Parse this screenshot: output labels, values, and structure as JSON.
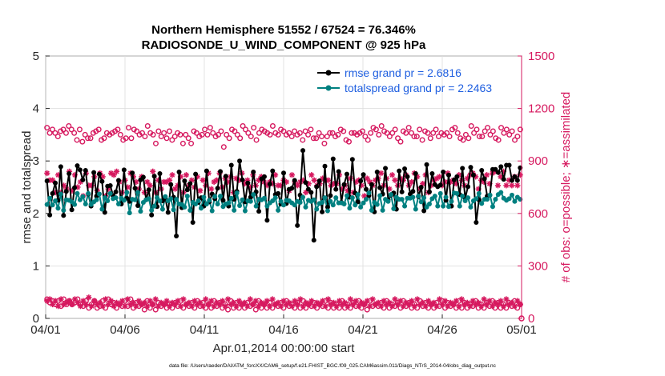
{
  "chart_data": {
    "type": "line",
    "title": [
      "Northern Hemisphere 51552 / 67524 = 76.346%",
      "RADIOSONDE_U_WIND_COMPONENT @ 925 hPa"
    ],
    "xlabel": "Apr.01,2014 00:00:00 start",
    "ylabel": "rmse and totalspread",
    "y2label": "# of obs: o=possible; ∗=assimilated",
    "footnote": "data file: /Users/raeder/DAI/ATM_forcXX/CAM6_setup/f.e21.FHIST_BGC.f09_025.CAM6assim.011/Diags_NTrS_2014-04/obs_diag_output.nc",
    "xlim": [
      0,
      30
    ],
    "ylim": [
      0,
      5
    ],
    "y2lim": [
      0,
      1500
    ],
    "xticks": [
      0,
      5,
      10,
      15,
      20,
      25,
      30
    ],
    "xticklabels": [
      "04/01",
      "04/06",
      "04/11",
      "04/16",
      "04/21",
      "04/26",
      "05/01"
    ],
    "yticks": [
      0,
      1,
      2,
      3,
      4,
      5
    ],
    "yticklabels": [
      "0",
      "1",
      "2",
      "3",
      "4",
      "5"
    ],
    "y2ticks": [
      0,
      300,
      600,
      900,
      1200,
      1500
    ],
    "y2ticklabels": [
      "0",
      "300",
      "600",
      "900",
      "1200",
      "1500"
    ],
    "legend_position": "top-right",
    "colors": {
      "rmse": "#000000",
      "spread": "#008080",
      "obs": "#d6195f"
    },
    "series": [
      {
        "name": "rmse",
        "legend": "rmse grand pr = 2.6816",
        "values": [
          2.62,
          1.97,
          2.38,
          2.58,
          2.25,
          2.89,
          1.96,
          2.42,
          2.76,
          2.07,
          2.49,
          2.91,
          2.83,
          2.64,
          2.82,
          2.37,
          2.14,
          2.78,
          2.33,
          2.75,
          2.61,
          2.02,
          2.52,
          2.53,
          2.34,
          2.41,
          2.63,
          2.18,
          2.83,
          2.29,
          2.23,
          2.77,
          2.48,
          2.15,
          2.64,
          2.69,
          2.26,
          2.45,
          1.97,
          2.71,
          2.13,
          2.76,
          2.24,
          2.29,
          2.02,
          2.55,
          2.31,
          1.57,
          2.79,
          2.11,
          2.62,
          2.45,
          2.57,
          1.83,
          2.75,
          2.21,
          2.3,
          2.14,
          2.81,
          2.22,
          2.37,
          2.28,
          2.48,
          2.8,
          2.25,
          2.71,
          2.14,
          2.92,
          2.27,
          2.42,
          3.0,
          2.64,
          2.22,
          2.58,
          2.31,
          2.79,
          2.41,
          2.04,
          2.66,
          2.7,
          1.87,
          2.56,
          2.81,
          2.36,
          2.38,
          2.18,
          2.77,
          2.19,
          2.46,
          2.48,
          2.63,
          1.77,
          2.35,
          3.2,
          2.59,
          2.46,
          2.4,
          1.49,
          2.51,
          2.62,
          2.03,
          2.9,
          2.12,
          2.34,
          3.04,
          2.46,
          2.8,
          2.21,
          2.55,
          2.75,
          2.31,
          3.03,
          2.39,
          2.22,
          2.62,
          2.74,
          2.46,
          2.34,
          2.55,
          2.03,
          2.79,
          2.49,
          2.37,
          2.86,
          2.26,
          2.35,
          2.39,
          2.08,
          2.81,
          2.41,
          2.85,
          2.7,
          2.37,
          2.42,
          2.76,
          2.32,
          2.5,
          2.05,
          2.93,
          2.41,
          2.76,
          2.55,
          2.51,
          2.54,
          2.79,
          2.25,
          2.73,
          2.14,
          2.64,
          2.7,
          2.36,
          2.86,
          2.29,
          2.51,
          2.88,
          2.73,
          1.83,
          2.26,
          2.82,
          2.66,
          2.33,
          2.35,
          2.84,
          2.84,
          2.78,
          2.89,
          2.65,
          2.92,
          2.92,
          2.63,
          2.7,
          2.63,
          2.87
        ]
      },
      {
        "name": "totalspread",
        "legend": "totalspread grand pr = 2.2463",
        "values": [
          2.17,
          2.29,
          2.16,
          2.24,
          2.1,
          2.37,
          2.06,
          2.26,
          2.25,
          2.22,
          2.17,
          2.38,
          2.26,
          2.32,
          2.18,
          2.38,
          2.17,
          2.22,
          2.26,
          2.37,
          2.08,
          2.3,
          2.24,
          2.38,
          2.28,
          2.3,
          2.18,
          2.29,
          2.25,
          2.4,
          2.01,
          2.27,
          2.26,
          2.4,
          2.04,
          2.21,
          2.26,
          2.28,
          2.06,
          2.14,
          2.3,
          2.24,
          2.08,
          2.32,
          2.24,
          2.28,
          2.07,
          2.27,
          2.18,
          2.17,
          2.12,
          2.33,
          2.06,
          2.21,
          2.18,
          2.24,
          2.1,
          2.31,
          2.18,
          2.25,
          2.05,
          2.32,
          2.18,
          2.33,
          2.13,
          2.18,
          2.2,
          2.29,
          2.06,
          2.39,
          2.15,
          2.26,
          2.05,
          2.24,
          2.23,
          2.36,
          2.14,
          2.27,
          2.26,
          2.29,
          2.14,
          2.2,
          2.24,
          2.3,
          2.06,
          2.23,
          2.16,
          2.25,
          2.24,
          2.2,
          2.16,
          2.23,
          2.21,
          2.31,
          2.12,
          2.25,
          2.23,
          2.26,
          2.08,
          2.19,
          2.21,
          2.3,
          2.05,
          2.23,
          2.16,
          2.3,
          2.2,
          2.2,
          2.18,
          2.34,
          2.1,
          2.3,
          2.16,
          2.36,
          2.12,
          2.2,
          2.27,
          2.39,
          2.06,
          2.21,
          2.17,
          2.34,
          2.06,
          2.27,
          2.23,
          2.36,
          2.09,
          2.31,
          2.27,
          2.27,
          2.14,
          2.29,
          2.29,
          2.31,
          2.08,
          2.33,
          2.22,
          2.3,
          2.12,
          2.18,
          2.28,
          2.33,
          2.14,
          2.38,
          2.14,
          2.31,
          2.13,
          2.23,
          2.39,
          2.38,
          2.14,
          2.33,
          2.24,
          2.3,
          2.12,
          2.24,
          2.28,
          2.38,
          2.19,
          2.27,
          2.27,
          2.35,
          2.13,
          2.27,
          2.36,
          2.4,
          2.29,
          2.25,
          2.28,
          2.35,
          2.23,
          2.31,
          2.27
        ]
      },
      {
        "name": "obs_possible",
        "axis": "right",
        "marker": "o",
        "values": [
          1090,
          1060,
          1080,
          1060,
          1040,
          1070,
          1080,
          1060,
          1100,
          1080,
          1060,
          1020,
          1080,
          1010,
          1050,
          1030,
          1030,
          1060,
          1070,
          1080,
          1020,
          1030,
          1060,
          1050,
          1060,
          1070,
          1080,
          1050,
          1020,
          1030,
          1090,
          1030,
          1080,
          1070,
          1050,
          1060,
          1040,
          1100,
          1060,
          1050,
          1000,
          1070,
          1040,
          1060,
          1030,
          1070,
          1020,
          1040,
          1060,
          1050,
          1000,
          1050,
          1030,
          1000,
          1070,
          1060,
          1040,
          1050,
          1080,
          1050,
          1090,
          1060,
          1040,
          1050,
          1070,
          980,
          1050,
          1030,
          1080,
          1070,
          1050,
          1030,
          1100,
          1080,
          1060,
          1040,
          1090,
          1020,
          1060,
          1080,
          1070,
          1060,
          1050,
          1100,
          1060,
          1050,
          1080,
          1070,
          1050,
          1060,
          1040,
          1070,
          1050,
          1060,
          1020,
          1070,
          1050,
          1080,
          1030,
          1030,
          1060,
          1040,
          1000,
          1040,
          1060,
          1060,
          1040,
          1050,
          1080,
          1070,
          1020,
          1010,
          1060,
          1060,
          1050,
          1060,
          1070,
          1040,
          1020,
          1060,
          1090,
          1080,
          1050,
          1100,
          1070,
          1060,
          1040,
          1060,
          1080,
          1030,
          1010,
          1070,
          1060,
          1090,
          1060,
          1040,
          1040,
          1080,
          1020,
          1070,
          1060,
          1030,
          1060,
          1080,
          1040,
          1060,
          1050,
          1060,
          1040,
          1080,
          1090,
          1060,
          1030,
          1020,
          1050,
          1030,
          1100,
          1060,
          1080,
          1040,
          1040,
          1070,
          1090,
          1050,
          1070,
          1030,
          1020,
          1090,
          1060,
          1080,
          1050,
          1070,
          1020,
          1040,
          1080
        ]
      },
      {
        "name": "obs_assimilated",
        "axis": "right",
        "marker": "*",
        "values": [
          830,
          790,
          790,
          720,
          820,
          720,
          760,
          740,
          840,
          730,
          820,
          750,
          780,
          700,
          830,
          760,
          760,
          810,
          730,
          830,
          810,
          700,
          740,
          830,
          820,
          840,
          780,
          720,
          790,
          750,
          830,
          810,
          780,
          740,
          810,
          720,
          780,
          760,
          840,
          720,
          790,
          740,
          780,
          780,
          790,
          820,
          740,
          760,
          810,
          720,
          820,
          760,
          790,
          750,
          810,
          730,
          790,
          760,
          830,
          740,
          780,
          790,
          830,
          750,
          800,
          780,
          810,
          720,
          800,
          790,
          830,
          770,
          790,
          750,
          820,
          760,
          790,
          810,
          780,
          760,
          780,
          770,
          820,
          760,
          760,
          790,
          780,
          730,
          820,
          780,
          760,
          780,
          790,
          720,
          770,
          820,
          790,
          760,
          770,
          800,
          790,
          790,
          760,
          770,
          770,
          820,
          740,
          760,
          730,
          800,
          720,
          780,
          790,
          760,
          700,
          800,
          780,
          760,
          790,
          800,
          830,
          760,
          800,
          740,
          820,
          790,
          760,
          800,
          790,
          820,
          760,
          780,
          830,
          810,
          740,
          770,
          820,
          720,
          760,
          790,
          800,
          810,
          760,
          780,
          830,
          780,
          790,
          770,
          820,
          790,
          760,
          800,
          820,
          830,
          810,
          740,
          790,
          780,
          820,
          770,
          830,
          840,
          760,
          810,
          840,
          760,
          790,
          760,
          810,
          760,
          820
        ]
      },
      {
        "name": "obs_possible_low",
        "axis": "right",
        "marker": "o",
        "values": [
          110,
          90,
          100,
          80,
          100,
          70,
          110,
          80,
          100,
          80,
          90,
          110,
          80,
          70,
          100,
          60,
          80,
          100,
          60,
          70,
          100,
          60,
          110,
          80,
          90,
          60,
          80,
          70,
          100,
          70,
          110,
          60,
          90,
          70,
          80,
          50,
          100,
          60,
          80,
          50,
          90,
          70,
          80,
          60,
          80,
          60,
          90,
          70,
          100,
          60,
          80,
          70,
          90,
          60,
          100,
          70,
          90,
          60,
          80,
          60,
          100,
          70,
          90,
          60,
          80,
          50,
          100,
          60,
          90,
          60,
          80,
          60,
          90,
          70,
          80,
          50,
          100,
          60,
          80,
          60,
          90,
          60,
          80,
          70,
          90,
          60,
          100,
          70,
          80,
          60,
          90,
          60,
          100,
          60,
          80,
          70,
          90,
          60,
          80,
          70,
          100,
          60,
          90,
          60,
          80,
          60,
          100,
          60,
          80,
          60,
          90,
          70,
          100,
          60,
          80,
          50,
          100,
          70,
          80,
          70,
          90,
          60,
          100,
          60,
          80,
          70,
          90,
          60,
          100,
          70,
          90,
          60,
          80,
          60,
          100,
          70,
          90,
          60,
          80,
          60,
          90,
          70,
          100,
          60,
          90,
          70,
          80,
          60,
          100,
          60,
          90,
          60,
          80,
          70,
          100,
          60,
          80,
          60,
          90,
          70,
          100,
          60,
          90,
          60,
          80,
          60,
          90,
          70,
          100,
          60,
          80
        ]
      },
      {
        "name": "obs_assimilated_low",
        "axis": "right",
        "marker": "*",
        "values": [
          100,
          110,
          80,
          100,
          70,
          110,
          80,
          90,
          100,
          80,
          110,
          90,
          70,
          100,
          80,
          120,
          70,
          100,
          80,
          90,
          70,
          110,
          80,
          100,
          70,
          90,
          80,
          100,
          70,
          110,
          80,
          90,
          70,
          100,
          80,
          90,
          70,
          100,
          80,
          110,
          70,
          90,
          80,
          100,
          70,
          90,
          80,
          100,
          70,
          110,
          80,
          90,
          70,
          100,
          80,
          90,
          70,
          110,
          80,
          100,
          70,
          90,
          80,
          100,
          70,
          110,
          80,
          90,
          70,
          100,
          80,
          90,
          70,
          110,
          80,
          100,
          70,
          90,
          80,
          100,
          70,
          110,
          80,
          90,
          70,
          100,
          80,
          90,
          70,
          100,
          80,
          110,
          70,
          90,
          80,
          100,
          70,
          90,
          80,
          100,
          70,
          110,
          80,
          90,
          70,
          100,
          80,
          90,
          70,
          110,
          80,
          100,
          70,
          90,
          80,
          100,
          70,
          110,
          80,
          90,
          70,
          100,
          80,
          90,
          70,
          110,
          80,
          100,
          70,
          90,
          80,
          100,
          70,
          110,
          80,
          90,
          70,
          100,
          80,
          90,
          70,
          110,
          80,
          100,
          70,
          90,
          80,
          100,
          70,
          110,
          80,
          90,
          70,
          100,
          80,
          90,
          70,
          110,
          80,
          100,
          70,
          90,
          80,
          100,
          70,
          110,
          80,
          90,
          70,
          100,
          80
        ]
      }
    ]
  }
}
